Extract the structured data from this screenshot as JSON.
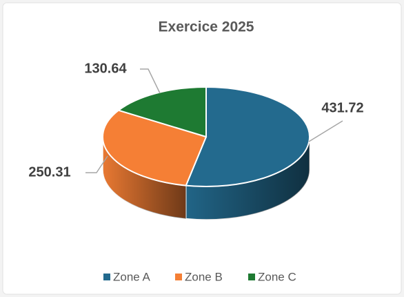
{
  "chart_data": {
    "type": "pie",
    "title": "Exercice 2025",
    "categories": [
      "Zone A",
      "Zone B",
      "Zone C"
    ],
    "values": [
      431.72,
      250.31,
      130.64
    ],
    "colors": [
      "#236a8e",
      "#f57f35",
      "#1e7a32"
    ],
    "legend": "bottom"
  }
}
